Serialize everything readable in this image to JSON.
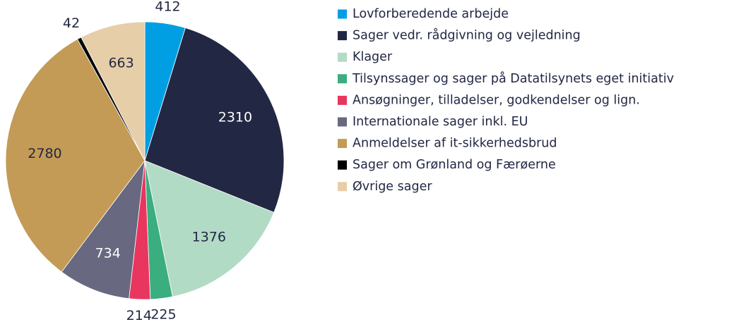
{
  "chart_data": {
    "type": "pie",
    "categories": [
      "Lovforberedende arbejde",
      "Sager vedr. rådgivning og vejledning",
      "Klager",
      "Tilsynssager og sager på Datatilsynets eget initiativ",
      "Ansøgninger, tilladelser, godkendelser og lign.",
      "Internationale sager inkl. EU",
      "Anmeldelser af it-sikkerhedsbrud",
      "Sager om Grønland og Færøerne",
      "Øvrige sager"
    ],
    "values": [
      412,
      2310,
      1376,
      225,
      214,
      734,
      2780,
      42,
      663
    ],
    "colors": [
      "#009fe3",
      "#222743",
      "#b2dbc5",
      "#3aae7f",
      "#e8365e",
      "#686880",
      "#c39b56",
      "#000000",
      "#e6cea8"
    ],
    "legend": "right"
  }
}
